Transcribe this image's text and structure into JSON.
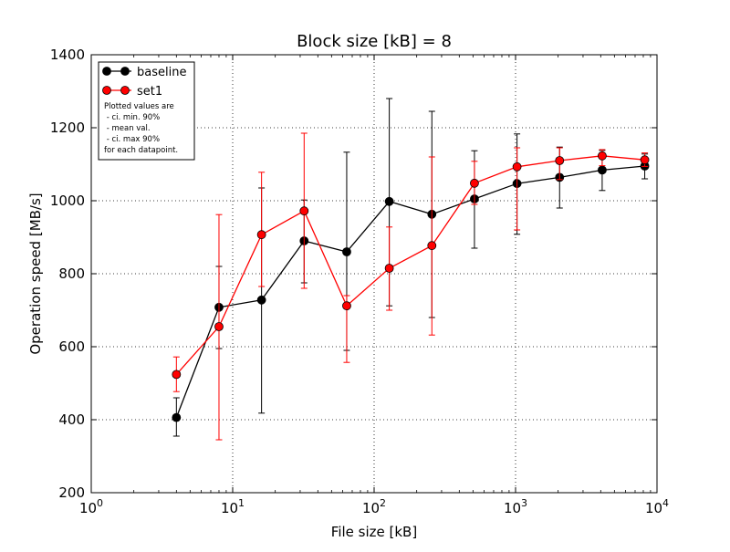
{
  "chart_data": {
    "type": "line",
    "title": "Block size [kB] = 8",
    "xlabel": "File size [kB]",
    "ylabel": "Operation speed [MB/s]",
    "xscale": "log",
    "xlim": [
      1,
      10000
    ],
    "ylim": [
      200,
      1400
    ],
    "x_ticks": [
      {
        "value": 1,
        "base": "10",
        "exp": "0"
      },
      {
        "value": 10,
        "base": "10",
        "exp": "1"
      },
      {
        "value": 100,
        "base": "10",
        "exp": "2"
      },
      {
        "value": 1000,
        "base": "10",
        "exp": "3"
      },
      {
        "value": 10000,
        "base": "10",
        "exp": "4"
      }
    ],
    "y_ticks": [
      200,
      400,
      600,
      800,
      1000,
      1200,
      1400
    ],
    "grid": true,
    "legend_position": "top-left",
    "x": [
      4,
      8,
      16,
      32,
      64,
      128,
      256,
      512,
      1024,
      2048,
      4096,
      8192
    ],
    "series": [
      {
        "name": "baseline",
        "color": "#000000",
        "values": [
          406,
          708,
          728,
          890,
          860,
          998,
          963,
          1005,
          1047,
          1064,
          1084,
          1095
        ],
        "ci_min": [
          355,
          595,
          418,
          775,
          590,
          712,
          680,
          870,
          908,
          980,
          1028,
          1060
        ],
        "ci_max": [
          460,
          820,
          1035,
          1002,
          1133,
          1280,
          1245,
          1137,
          1183,
          1147,
          1138,
          1128
        ]
      },
      {
        "name": "set1",
        "color": "#ff0000",
        "values": [
          524,
          655,
          907,
          972,
          712,
          815,
          877,
          1048,
          1093,
          1110,
          1123,
          1112
        ],
        "ci_min": [
          477,
          345,
          765,
          760,
          557,
          700,
          632,
          990,
          920,
          1058,
          1096,
          1094
        ],
        "ci_max": [
          572,
          962,
          1078,
          1185,
          740,
          928,
          1120,
          1108,
          1145,
          1145,
          1140,
          1131
        ]
      }
    ],
    "legend_note": [
      "Plotted values are",
      " - ci. min. 90%",
      " - mean val.",
      " - ci. max 90%",
      "for each datapoint."
    ]
  }
}
